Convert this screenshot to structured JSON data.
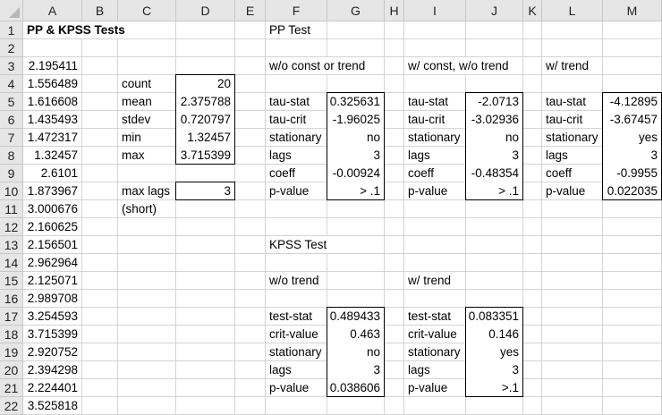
{
  "column_headers": [
    "A",
    "B",
    "C",
    "D",
    "E",
    "F",
    "G",
    "H",
    "I",
    "J",
    "K",
    "L",
    "M"
  ],
  "row_count": 22,
  "boxes": [
    "D4:D8",
    "D10:D10",
    "G5:G10",
    "J5:J10",
    "M5:M10",
    "G17:G21",
    "J17:J21"
  ],
  "cells": [
    {
      "ref": "A1",
      "value": "PP & KPSS Tests",
      "align": "left",
      "bold": true
    },
    {
      "ref": "F1",
      "value": "PP Test",
      "align": "left"
    },
    {
      "ref": "A3",
      "value": "2.195411",
      "align": "right"
    },
    {
      "ref": "A4",
      "value": "1.556489",
      "align": "right"
    },
    {
      "ref": "A5",
      "value": "1.616608",
      "align": "right"
    },
    {
      "ref": "A6",
      "value": "1.435493",
      "align": "right"
    },
    {
      "ref": "A7",
      "value": "1.472317",
      "align": "right"
    },
    {
      "ref": "A8",
      "value": "1.32457",
      "align": "right"
    },
    {
      "ref": "A9",
      "value": "2.6101",
      "align": "right"
    },
    {
      "ref": "A10",
      "value": "1.873967",
      "align": "right"
    },
    {
      "ref": "A11",
      "value": "3.000676",
      "align": "right"
    },
    {
      "ref": "A12",
      "value": "2.160625",
      "align": "right"
    },
    {
      "ref": "A13",
      "value": "2.156501",
      "align": "right"
    },
    {
      "ref": "A14",
      "value": "2.962964",
      "align": "right"
    },
    {
      "ref": "A15",
      "value": "2.125071",
      "align": "right"
    },
    {
      "ref": "A16",
      "value": "2.989708",
      "align": "right"
    },
    {
      "ref": "A17",
      "value": "3.254593",
      "align": "right"
    },
    {
      "ref": "A18",
      "value": "3.715399",
      "align": "right"
    },
    {
      "ref": "A19",
      "value": "2.920752",
      "align": "right"
    },
    {
      "ref": "A20",
      "value": "2.394298",
      "align": "right"
    },
    {
      "ref": "A21",
      "value": "2.224401",
      "align": "right"
    },
    {
      "ref": "A22",
      "value": "3.525818",
      "align": "right"
    },
    {
      "ref": "C4",
      "value": "count",
      "align": "left"
    },
    {
      "ref": "D4",
      "value": "20",
      "align": "right"
    },
    {
      "ref": "C5",
      "value": "mean",
      "align": "left"
    },
    {
      "ref": "D5",
      "value": "2.375788",
      "align": "right"
    },
    {
      "ref": "C6",
      "value": "stdev",
      "align": "left"
    },
    {
      "ref": "D6",
      "value": "0.720797",
      "align": "right"
    },
    {
      "ref": "C7",
      "value": "min",
      "align": "left"
    },
    {
      "ref": "D7",
      "value": "1.32457",
      "align": "right"
    },
    {
      "ref": "C8",
      "value": "max",
      "align": "left"
    },
    {
      "ref": "D8",
      "value": "3.715399",
      "align": "right"
    },
    {
      "ref": "C10",
      "value": "max lags",
      "align": "left"
    },
    {
      "ref": "D10",
      "value": "3",
      "align": "right"
    },
    {
      "ref": "C11",
      "value": "(short)",
      "align": "left"
    },
    {
      "ref": "F3",
      "value": "w/o const or trend",
      "align": "left"
    },
    {
      "ref": "I3",
      "value": "w/ const, w/o trend",
      "align": "left"
    },
    {
      "ref": "L3",
      "value": "w/ trend",
      "align": "left"
    },
    {
      "ref": "F5",
      "value": "tau-stat",
      "align": "left"
    },
    {
      "ref": "G5",
      "value": "0.325631",
      "align": "right"
    },
    {
      "ref": "F6",
      "value": "tau-crit",
      "align": "left"
    },
    {
      "ref": "G6",
      "value": "-1.96025",
      "align": "right"
    },
    {
      "ref": "F7",
      "value": "stationary",
      "align": "left"
    },
    {
      "ref": "G7",
      "value": "no",
      "align": "right"
    },
    {
      "ref": "F8",
      "value": "lags",
      "align": "left"
    },
    {
      "ref": "G8",
      "value": "3",
      "align": "right"
    },
    {
      "ref": "F9",
      "value": "coeff",
      "align": "left"
    },
    {
      "ref": "G9",
      "value": "-0.00924",
      "align": "right"
    },
    {
      "ref": "F10",
      "value": "p-value",
      "align": "left"
    },
    {
      "ref": "G10",
      "value": "> .1",
      "align": "right"
    },
    {
      "ref": "I5",
      "value": "tau-stat",
      "align": "left"
    },
    {
      "ref": "J5",
      "value": "-2.0713",
      "align": "right"
    },
    {
      "ref": "I6",
      "value": "tau-crit",
      "align": "left"
    },
    {
      "ref": "J6",
      "value": "-3.02936",
      "align": "right"
    },
    {
      "ref": "I7",
      "value": "stationary",
      "align": "left"
    },
    {
      "ref": "J7",
      "value": "no",
      "align": "right"
    },
    {
      "ref": "I8",
      "value": "lags",
      "align": "left"
    },
    {
      "ref": "J8",
      "value": "3",
      "align": "right"
    },
    {
      "ref": "I9",
      "value": "coeff",
      "align": "left"
    },
    {
      "ref": "J9",
      "value": "-0.48354",
      "align": "right"
    },
    {
      "ref": "I10",
      "value": "p-value",
      "align": "left"
    },
    {
      "ref": "J10",
      "value": "> .1",
      "align": "right"
    },
    {
      "ref": "L5",
      "value": "tau-stat",
      "align": "left"
    },
    {
      "ref": "M5",
      "value": "-4.12895",
      "align": "right"
    },
    {
      "ref": "L6",
      "value": "tau-crit",
      "align": "left"
    },
    {
      "ref": "M6",
      "value": "-3.67457",
      "align": "right"
    },
    {
      "ref": "L7",
      "value": "stationary",
      "align": "left"
    },
    {
      "ref": "M7",
      "value": "yes",
      "align": "right"
    },
    {
      "ref": "L8",
      "value": "lags",
      "align": "left"
    },
    {
      "ref": "M8",
      "value": "3",
      "align": "right"
    },
    {
      "ref": "L9",
      "value": "coeff",
      "align": "left"
    },
    {
      "ref": "M9",
      "value": "-0.9955",
      "align": "right"
    },
    {
      "ref": "L10",
      "value": "p-value",
      "align": "left"
    },
    {
      "ref": "M10",
      "value": "0.022035",
      "align": "right"
    },
    {
      "ref": "F13",
      "value": "KPSS Test",
      "align": "left"
    },
    {
      "ref": "F15",
      "value": "w/o trend",
      "align": "left"
    },
    {
      "ref": "I15",
      "value": "w/ trend",
      "align": "left"
    },
    {
      "ref": "F17",
      "value": "test-stat",
      "align": "left"
    },
    {
      "ref": "G17",
      "value": "0.489433",
      "align": "right"
    },
    {
      "ref": "F18",
      "value": "crit-value",
      "align": "left"
    },
    {
      "ref": "G18",
      "value": "0.463",
      "align": "right"
    },
    {
      "ref": "F19",
      "value": "stationary",
      "align": "left"
    },
    {
      "ref": "G19",
      "value": "no",
      "align": "right"
    },
    {
      "ref": "F20",
      "value": "lags",
      "align": "left"
    },
    {
      "ref": "G20",
      "value": "3",
      "align": "right"
    },
    {
      "ref": "F21",
      "value": "p-value",
      "align": "left"
    },
    {
      "ref": "G21",
      "value": "0.038606",
      "align": "right"
    },
    {
      "ref": "I17",
      "value": "test-stat",
      "align": "left"
    },
    {
      "ref": "J17",
      "value": "0.083351",
      "align": "right"
    },
    {
      "ref": "I18",
      "value": "crit-value",
      "align": "left"
    },
    {
      "ref": "J18",
      "value": "0.146",
      "align": "right"
    },
    {
      "ref": "I19",
      "value": "stationary",
      "align": "left"
    },
    {
      "ref": "J19",
      "value": "yes",
      "align": "right"
    },
    {
      "ref": "I20",
      "value": "lags",
      "align": "left"
    },
    {
      "ref": "J20",
      "value": "3",
      "align": "right"
    },
    {
      "ref": "I21",
      "value": "p-value",
      "align": "left"
    },
    {
      "ref": "J21",
      "value": ">.1",
      "align": "right"
    }
  ]
}
